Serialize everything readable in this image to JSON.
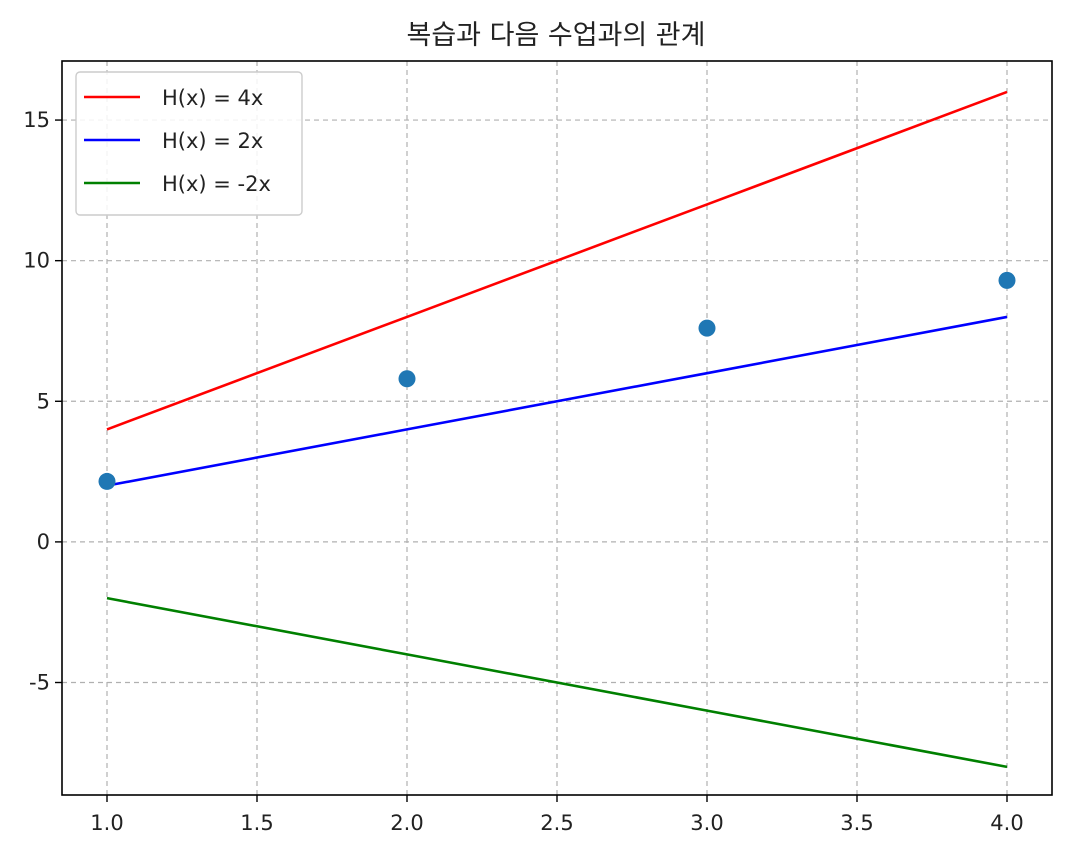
{
  "chart_data": {
    "type": "line",
    "title": "복습과 다음 수업과의 관계",
    "xlabel": "",
    "ylabel": "",
    "xlim": [
      0.85,
      4.15
    ],
    "ylim": [
      -9.0,
      17.1
    ],
    "x_ticks": [
      1.0,
      1.5,
      2.0,
      2.5,
      3.0,
      3.5,
      4.0
    ],
    "x_tick_labels": [
      "1.0",
      "1.5",
      "2.0",
      "2.5",
      "3.0",
      "3.5",
      "4.0"
    ],
    "y_ticks": [
      -5,
      0,
      5,
      10,
      15
    ],
    "y_tick_labels": [
      "-5",
      "0",
      "5",
      "10",
      "15"
    ],
    "grid": true,
    "legend_position": "top-left",
    "series": [
      {
        "name": "H(x) = 4x",
        "color": "#ff0000",
        "kind": "line",
        "x": [
          1,
          2,
          3,
          4
        ],
        "y": [
          4,
          8,
          12,
          16
        ]
      },
      {
        "name": "H(x) = 2x",
        "color": "#0000ff",
        "kind": "line",
        "x": [
          1,
          2,
          3,
          4
        ],
        "y": [
          2,
          4,
          6,
          8
        ]
      },
      {
        "name": "H(x) = -2x",
        "color": "#008000",
        "kind": "line",
        "x": [
          1,
          2,
          3,
          4
        ],
        "y": [
          -2,
          -4,
          -6,
          -8
        ]
      }
    ],
    "scatter": {
      "color": "#1f77b4",
      "x": [
        1,
        2,
        3,
        4
      ],
      "y": [
        2.15,
        5.8,
        7.6,
        9.3
      ]
    }
  }
}
